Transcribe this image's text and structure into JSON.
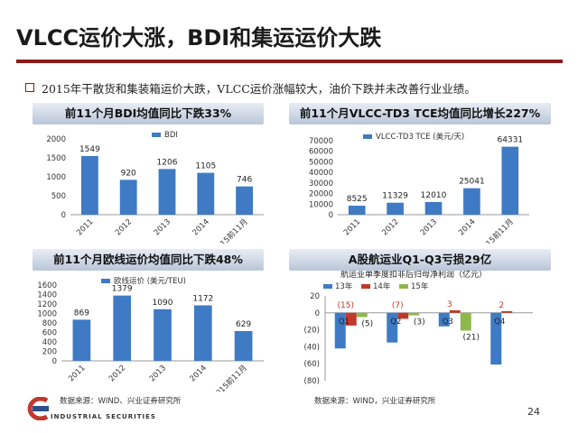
{
  "title": "VLCC运价大涨，BDI和集运运价大跌",
  "bullet": "2015年干散货和集装箱运价大跌，VLCC运价涨幅较大，油价下跌并未改善行业业绩。",
  "source_label": "数据来源：WIND、兴业证券研究所",
  "source_label_right": "数据来源：WIND，兴业证券研究所",
  "logo_text": "INDUSTRIAL SECURITIES",
  "page_number": "24",
  "colors": {
    "accent": "#8b1a1a",
    "bar": "#3f7ac4",
    "s13": "#3f7ac4",
    "s14": "#c0392b",
    "s15": "#8fb84c"
  },
  "chart_data": [
    {
      "type": "bar",
      "title": "前11个月BDI均值同比下跌33%",
      "legend": [
        "BDI"
      ],
      "categories": [
        "2011",
        "2012",
        "2013",
        "2014",
        "2015前11月"
      ],
      "values": [
        1549,
        920,
        1206,
        1105,
        746
      ],
      "yticks": [
        "0",
        "500",
        "1000",
        "1500",
        "2000"
      ],
      "ylim": [
        0,
        2000
      ]
    },
    {
      "type": "bar",
      "title": "前11个月VLCC-TD3 TCE均值同比增长227%",
      "legend": [
        "VLCC-TD3 TCE (美元/天)"
      ],
      "categories": [
        "2011",
        "2012",
        "2013",
        "2014",
        "2015前11月"
      ],
      "values": [
        8525,
        11329,
        12010,
        25041,
        64331
      ],
      "yticks": [
        "0",
        "10000",
        "20000",
        "30000",
        "40000",
        "50000",
        "60000",
        "70000"
      ],
      "ylim": [
        0,
        70000
      ]
    },
    {
      "type": "bar",
      "title": "前11个月欧线运价均值同比下跌48%",
      "legend": [
        "欧线运价 (美元/TEU)"
      ],
      "categories": [
        "2011",
        "2012",
        "2013",
        "2014",
        "2015前11月"
      ],
      "values": [
        869,
        1379,
        1090,
        1172,
        629
      ],
      "yticks": [
        "0",
        "200",
        "400",
        "600",
        "800",
        "1000",
        "1200",
        "1400",
        "1600"
      ],
      "ylim": [
        0,
        1600
      ]
    },
    {
      "type": "bar",
      "title": "A股航运业Q1-Q3亏损29亿",
      "subtitle": "航运业单季度扣非后归母净利润（亿元）",
      "categories": [
        "Q1",
        "Q2",
        "Q3",
        "Q4"
      ],
      "series": [
        {
          "name": "13年",
          "values": [
            -42,
            -35,
            -16,
            -61
          ]
        },
        {
          "name": "14年",
          "values": [
            -15,
            -7,
            3,
            2
          ]
        },
        {
          "name": "15年",
          "values": [
            -5,
            -3,
            -21,
            null
          ]
        }
      ],
      "data_labels": [
        {
          "series": 1,
          "index": 0,
          "text": "(15)"
        },
        {
          "series": 2,
          "index": 0,
          "text": "(5)"
        },
        {
          "series": 1,
          "index": 1,
          "text": "(7)"
        },
        {
          "series": 2,
          "index": 1,
          "text": "(3)"
        },
        {
          "series": 1,
          "index": 2,
          "text": "3"
        },
        {
          "series": 2,
          "index": 2,
          "text": "(21)"
        },
        {
          "series": 1,
          "index": 3,
          "text": "2"
        }
      ],
      "yticks": [
        "20",
        "0",
        "(20)",
        "(40)",
        "(60)",
        "(80)"
      ],
      "ylim": [
        -80,
        20
      ]
    }
  ]
}
